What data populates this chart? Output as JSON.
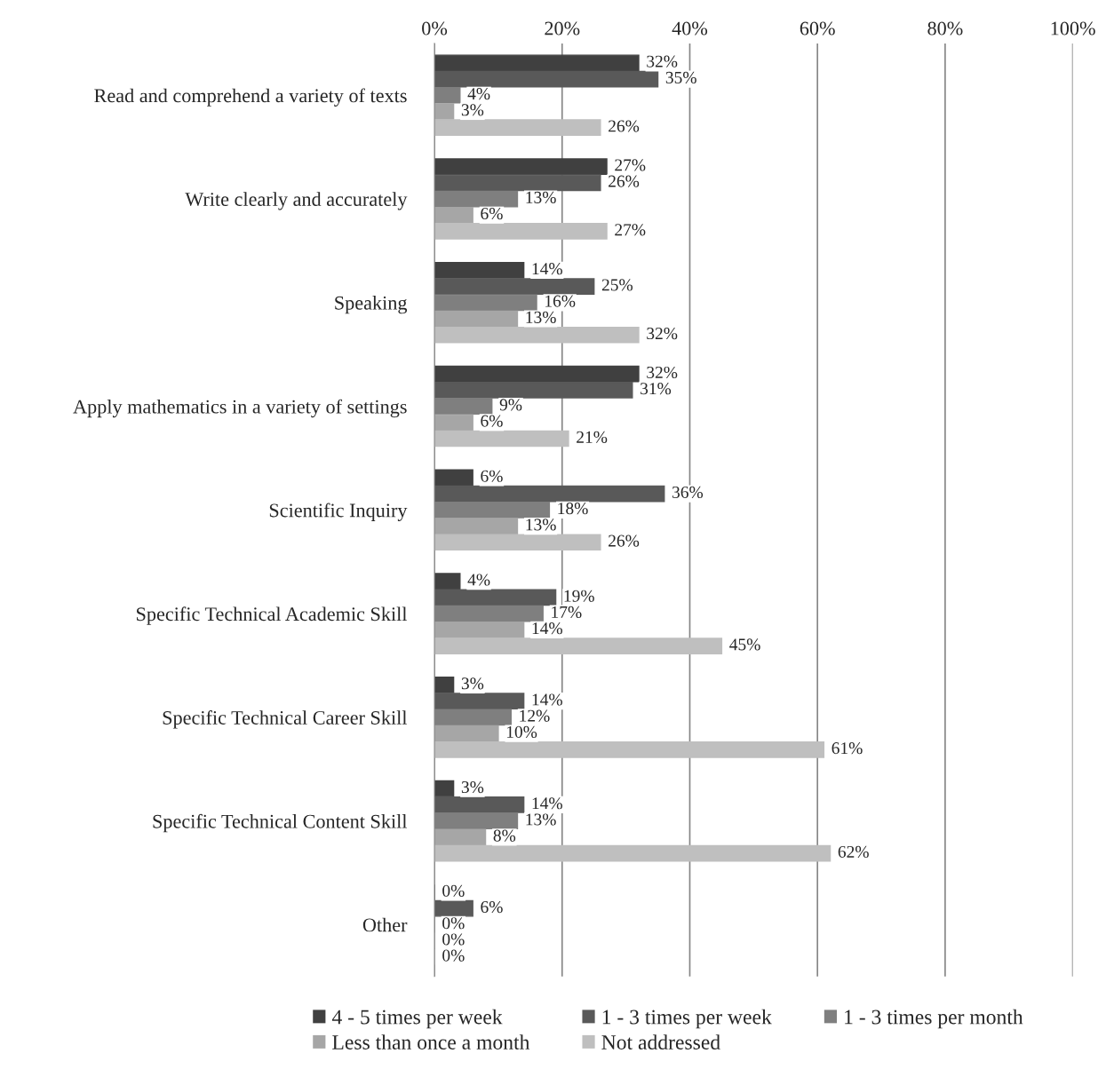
{
  "chart_data": {
    "type": "bar",
    "orientation": "horizontal",
    "categories": [
      "Read and comprehend a variety of texts",
      "Write clearly and accurately",
      "Speaking",
      "Apply mathematics in a variety of settings",
      "Scientific Inquiry",
      "Specific Technical Academic Skill",
      "Specific Technical Career Skill",
      "Specific Technical Content Skill",
      "Other"
    ],
    "series": [
      {
        "name": "4 - 5 times per week",
        "color": "#404040",
        "values": [
          32,
          27,
          14,
          32,
          6,
          4,
          3,
          3,
          0
        ],
        "value_labels": [
          "32%",
          "27%",
          "14%",
          "32%",
          "6%",
          "4%",
          "3%",
          "3%",
          "0%"
        ]
      },
      {
        "name": "1 - 3 times per week",
        "color": "#595959",
        "values": [
          35,
          26,
          25,
          31,
          36,
          19,
          14,
          14,
          6
        ],
        "value_labels": [
          "35%",
          "26%",
          "25%",
          "31%",
          "36%",
          "19%",
          "14%",
          "14%",
          "6%"
        ]
      },
      {
        "name": "1 - 3 times per month",
        "color": "#7f7f7f",
        "values": [
          4,
          13,
          16,
          9,
          18,
          17,
          12,
          13,
          0
        ],
        "value_labels": [
          "4%",
          "13%",
          "16%",
          "9%",
          "18%",
          "17%",
          "12%",
          "13%",
          "0%"
        ]
      },
      {
        "name": "Less than once a month",
        "color": "#a6a6a6",
        "values": [
          3,
          6,
          13,
          6,
          13,
          14,
          10,
          8,
          0
        ],
        "value_labels": [
          "3%",
          "6%",
          "13%",
          "6%",
          "13%",
          "14%",
          "10%",
          "8%",
          "0%"
        ]
      },
      {
        "name": "Not addressed",
        "color": "#bfbfbf",
        "values": [
          26,
          27,
          32,
          21,
          26,
          45,
          61,
          62,
          0
        ],
        "value_labels": [
          "26%",
          "27%",
          "32%",
          "21%",
          "26%",
          "45%",
          "61%",
          "62%",
          "0%"
        ]
      }
    ],
    "xlim": [
      0,
      100
    ],
    "xticks": [
      {
        "value": 0,
        "label": "0%"
      },
      {
        "value": 20,
        "label": "20%"
      },
      {
        "value": 40,
        "label": "40%"
      },
      {
        "value": 60,
        "label": "60%"
      },
      {
        "value": 80,
        "label": "80%"
      },
      {
        "value": 100,
        "label": "100%"
      }
    ],
    "grid": "x",
    "legend": "bottom"
  }
}
